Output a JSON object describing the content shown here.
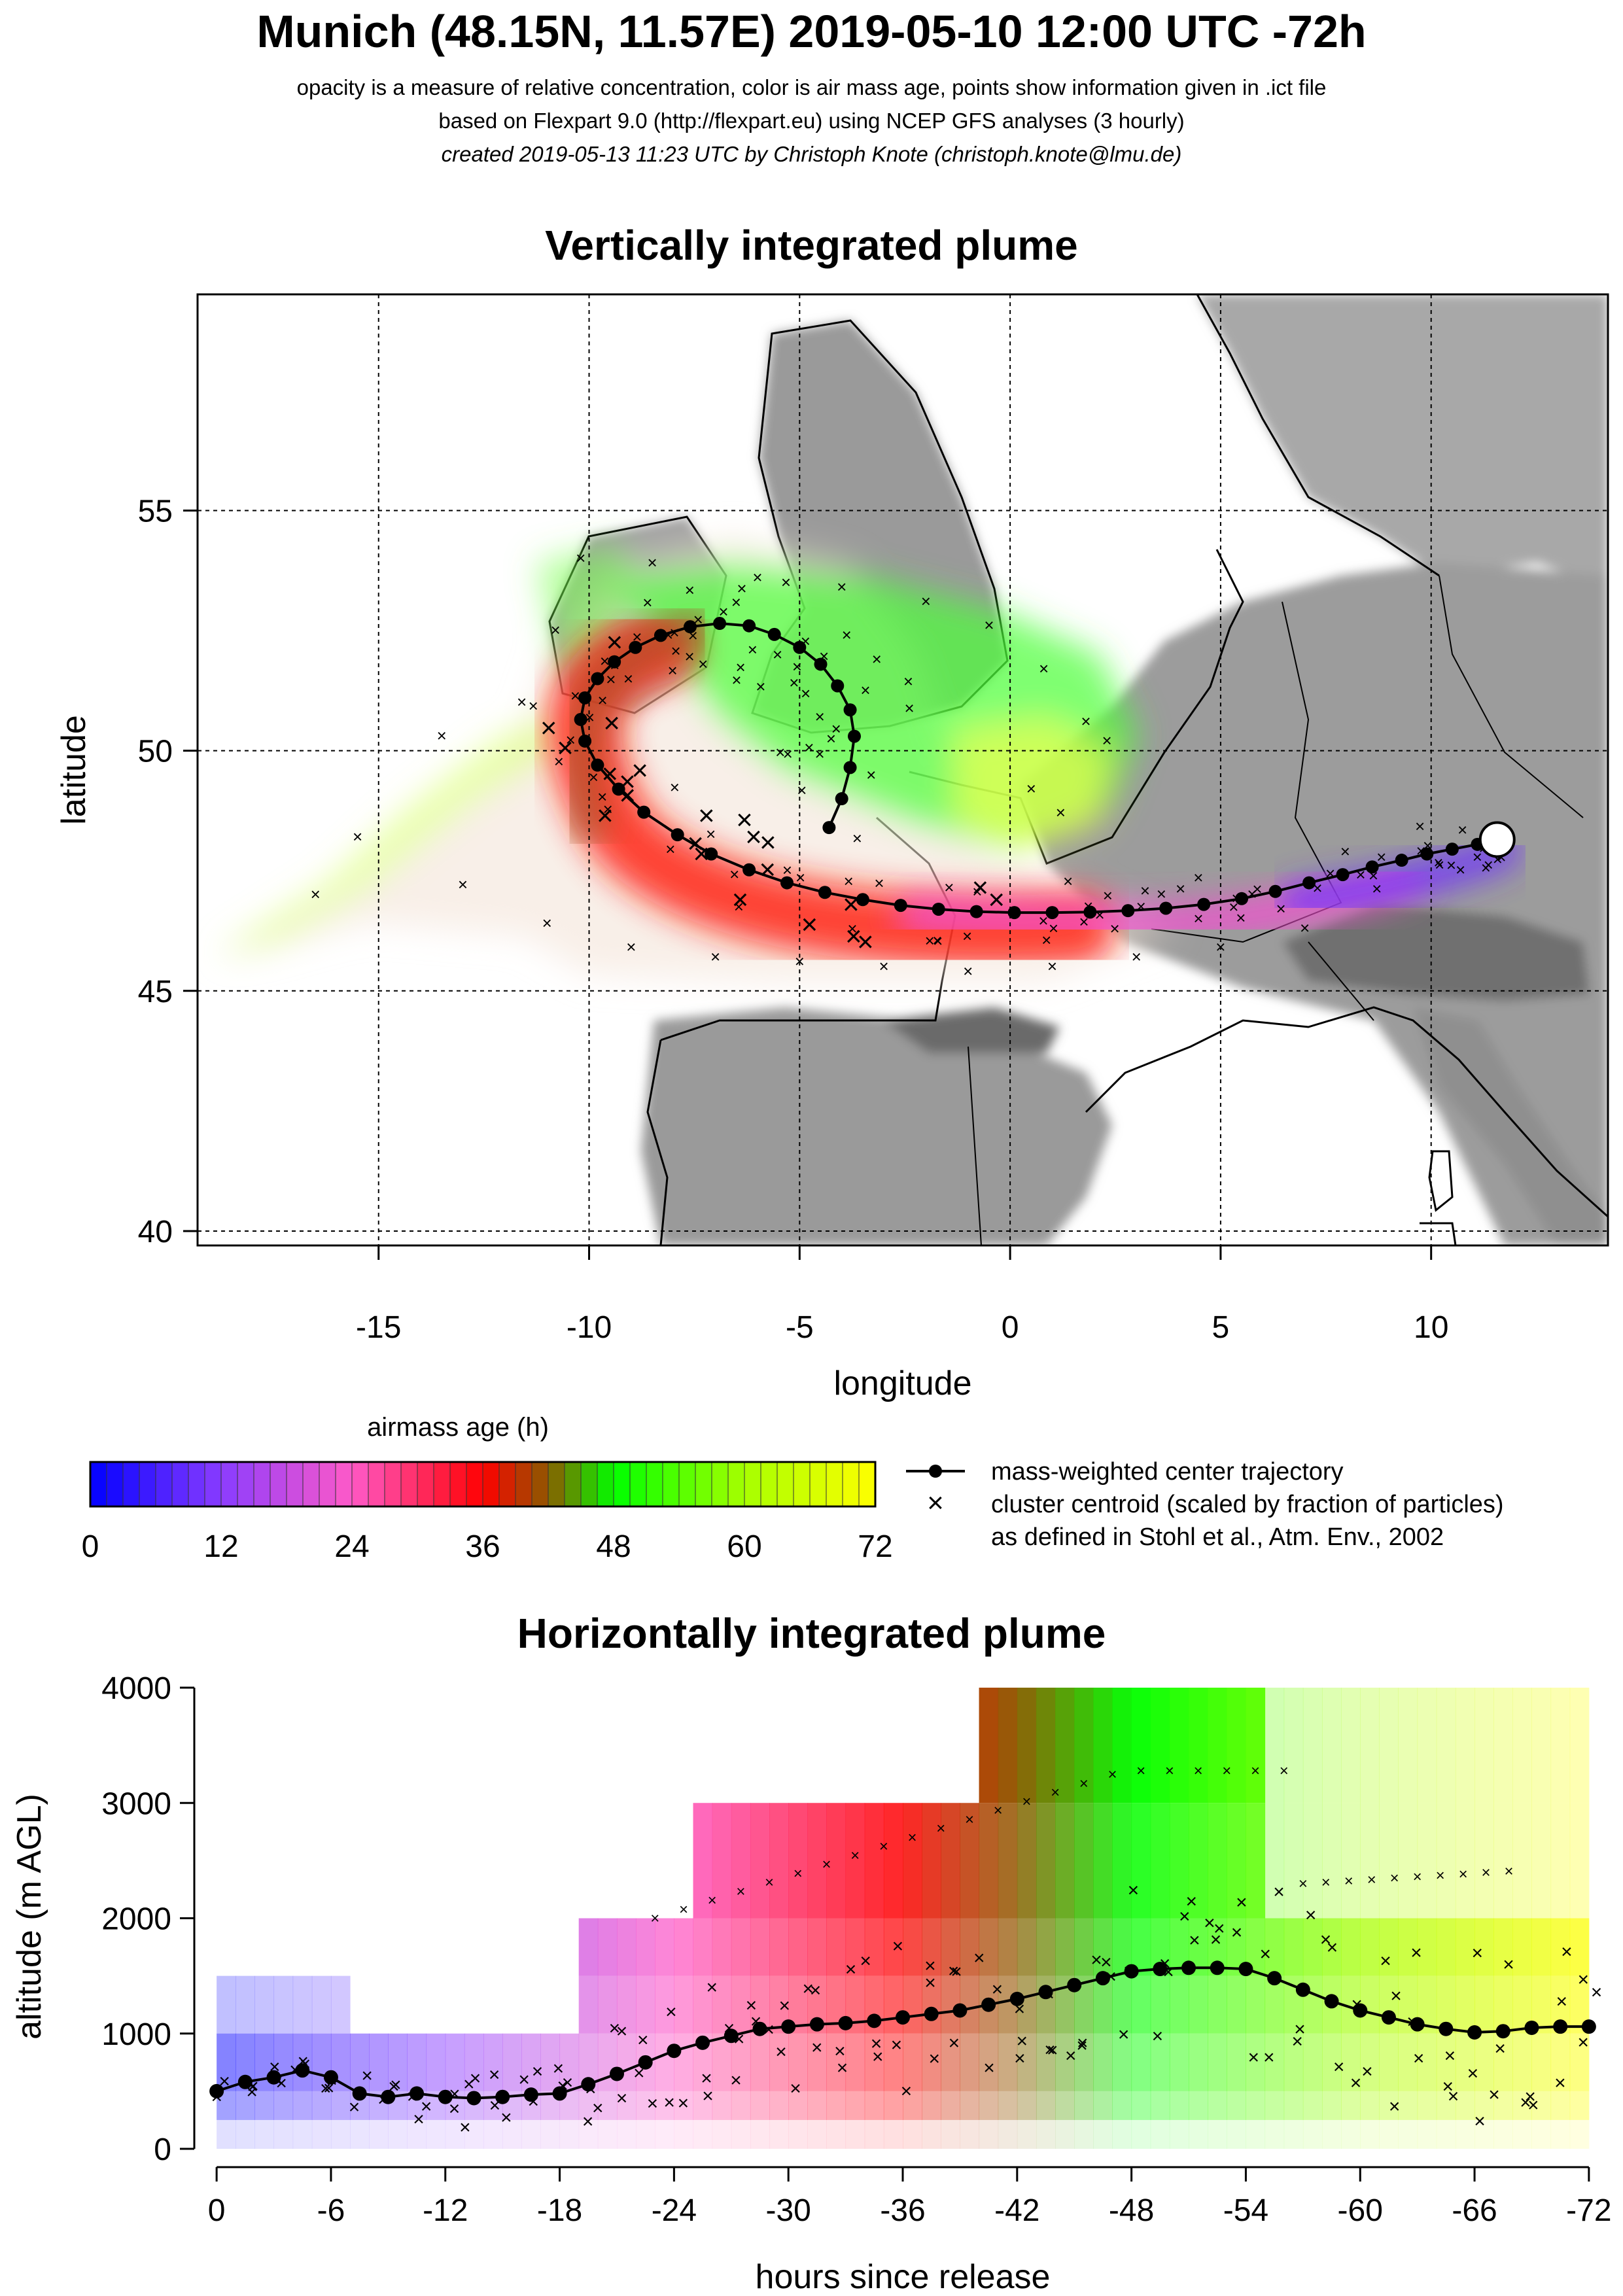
{
  "header": {
    "title": "Munich (48.15N, 11.57E) 2019-05-10 12:00 UTC -72h",
    "line1": "opacity is a measure of relative concentration, color is air mass age, points show information given in .ict file",
    "line2": "based on Flexpart 9.0 (http://flexpart.eu) using NCEP GFS analyses (3 hourly)",
    "line3": "created 2019-05-13 11:23 UTC by Christoph Knote (christoph.knote@lmu.de)"
  },
  "colors": {
    "age_0": "#0000ff",
    "age_12": "#8a3cff",
    "age_24": "#ff5ac8",
    "age_36": "#ff0000",
    "age_42": "#8c5a00",
    "age_48": "#00ff00",
    "age_60": "#a6ff00",
    "age_72": "#ffff00",
    "land": "#9e9e9e",
    "trajectory": "#000000"
  },
  "colorbar": {
    "title": "airmass age (h)",
    "ticks": [
      "0",
      "12",
      "24",
      "36",
      "48",
      "60",
      "72"
    ]
  },
  "legend": {
    "trajectory_label": "mass-weighted center trajectory",
    "cluster_label": "cluster centroid (scaled by fraction of particles)",
    "cluster_note": "as defined in Stohl et al., Atm. Env., 2002"
  },
  "chart_data": [
    {
      "type": "scatter",
      "title": "Vertically integrated plume",
      "xlabel": "longitude",
      "ylabel": "latitude",
      "xlim": [
        -19.3,
        14.2
      ],
      "ylim": [
        39.7,
        59.5
      ],
      "xticks": [
        "-15",
        "-10",
        "-5",
        "0",
        "5",
        "10"
      ],
      "yticks": [
        "40",
        "45",
        "50",
        "55"
      ],
      "grid": "dashed",
      "release_point": {
        "lon": 11.57,
        "lat": 48.15
      },
      "series": [
        {
          "name": "mass-weighted center trajectory",
          "lon": [
            11.57,
            11.1,
            10.5,
            9.9,
            9.3,
            8.6,
            7.9,
            7.1,
            6.3,
            5.5,
            4.6,
            3.7,
            2.8,
            1.9,
            1.0,
            0.1,
            -0.8,
            -1.7,
            -2.6,
            -3.5,
            -4.4,
            -5.3,
            -6.2,
            -7.1,
            -7.9,
            -8.7,
            -9.3,
            -9.8,
            -10.1,
            -10.2,
            -10.1,
            -9.8,
            -9.4,
            -8.9,
            -8.3,
            -7.6,
            -6.9,
            -6.2,
            -5.6,
            -5.0,
            -4.5,
            -4.1,
            -3.8,
            -3.7,
            -3.8,
            -4.0,
            -4.3
          ],
          "lat": [
            48.15,
            48.05,
            47.95,
            47.85,
            47.72,
            47.58,
            47.42,
            47.25,
            47.07,
            46.92,
            46.8,
            46.72,
            46.67,
            46.64,
            46.63,
            46.63,
            46.65,
            46.7,
            46.78,
            46.9,
            47.05,
            47.25,
            47.52,
            47.85,
            48.25,
            48.72,
            49.2,
            49.7,
            50.2,
            50.65,
            51.1,
            51.5,
            51.85,
            52.15,
            52.4,
            52.58,
            52.65,
            52.6,
            52.42,
            52.15,
            51.8,
            51.35,
            50.85,
            50.3,
            49.65,
            49.0,
            48.4
          ]
        }
      ]
    },
    {
      "type": "scatter",
      "title": "Horizontally integrated plume",
      "xlabel": "hours since release",
      "ylabel": "altitude (m AGL)",
      "xlim": [
        1,
        -73
      ],
      "ylim": [
        0,
        4000
      ],
      "xticks": [
        "0",
        "-6",
        "-12",
        "-18",
        "-24",
        "-30",
        "-36",
        "-42",
        "-48",
        "-54",
        "-60",
        "-66",
        "-72"
      ],
      "yticks": [
        "0",
        "1000",
        "2000",
        "3000",
        "4000"
      ],
      "series": [
        {
          "name": "mass-weighted center trajectory",
          "hours": [
            0,
            -1.5,
            -3,
            -4.5,
            -6,
            -7.5,
            -9,
            -10.5,
            -12,
            -13.5,
            -15,
            -16.5,
            -18,
            -19.5,
            -21,
            -22.5,
            -24,
            -25.5,
            -27,
            -28.5,
            -30,
            -31.5,
            -33,
            -34.5,
            -36,
            -37.5,
            -39,
            -40.5,
            -42,
            -43.5,
            -45,
            -46.5,
            -48,
            -49.5,
            -51,
            -52.5,
            -54,
            -55.5,
            -57,
            -58.5,
            -60,
            -61.5,
            -63,
            -64.5,
            -66,
            -67.5,
            -69,
            -70.5,
            -72
          ],
          "altitude": [
            500,
            580,
            620,
            680,
            620,
            480,
            450,
            480,
            450,
            440,
            450,
            470,
            480,
            560,
            650,
            750,
            850,
            920,
            980,
            1040,
            1060,
            1080,
            1090,
            1110,
            1140,
            1170,
            1200,
            1250,
            1300,
            1360,
            1420,
            1480,
            1540,
            1560,
            1570,
            1570,
            1560,
            1480,
            1380,
            1280,
            1200,
            1140,
            1080,
            1040,
            1010,
            1020,
            1050,
            1060,
            1060
          ]
        }
      ]
    }
  ]
}
